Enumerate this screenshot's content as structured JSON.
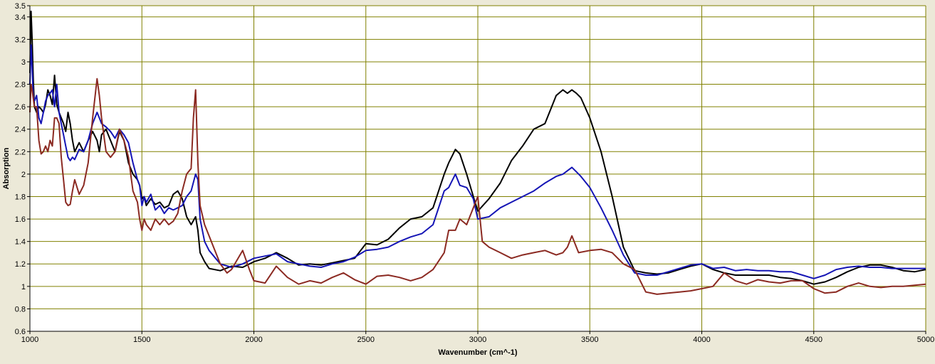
{
  "chart_data": {
    "type": "line",
    "title": "",
    "xlabel": "Wavenumber (cm^-1)",
    "ylabel": "Absorption",
    "xlim": [
      1000,
      5000
    ],
    "ylim": [
      0.6,
      3.5
    ],
    "grid": true,
    "legend": "none",
    "x_ticks": [
      {
        "value": 1000,
        "label": "1000"
      },
      {
        "value": 1500,
        "label": "1500"
      },
      {
        "value": 2000,
        "label": "2000"
      },
      {
        "value": 2500,
        "label": "2500"
      },
      {
        "value": 3000,
        "label": "3000"
      },
      {
        "value": 3500,
        "label": "3500"
      },
      {
        "value": 4000,
        "label": "4000"
      },
      {
        "value": 4500,
        "label": "4500"
      },
      {
        "value": 5000,
        "label": "5000"
      }
    ],
    "y_ticks": [
      {
        "value": 0.6,
        "label": "0.6"
      },
      {
        "value": 0.8,
        "label": "0.8"
      },
      {
        "value": 1.0,
        "label": "1"
      },
      {
        "value": 1.2,
        "label": "1.2"
      },
      {
        "value": 1.4,
        "label": "1.4"
      },
      {
        "value": 1.6,
        "label": "1.6"
      },
      {
        "value": 1.8,
        "label": "1.8"
      },
      {
        "value": 2.0,
        "label": "2"
      },
      {
        "value": 2.2,
        "label": "2.2"
      },
      {
        "value": 2.4,
        "label": "2.4"
      },
      {
        "value": 2.6,
        "label": "2.6"
      },
      {
        "value": 2.8,
        "label": "2.8"
      },
      {
        "value": 3.0,
        "label": "3"
      },
      {
        "value": 3.2,
        "label": "3.2"
      },
      {
        "value": 3.4,
        "label": "3.4"
      },
      {
        "value": 3.5,
        "label": "3.5"
      }
    ],
    "colors": {
      "background": "#ece9d8",
      "plot_area": "#ffffff",
      "grid": "#808000",
      "axis": "#000000"
    },
    "series": [
      {
        "color": "#000000",
        "x": [
          1000,
          1005,
          1010,
          1015,
          1020,
          1030,
          1040,
          1050,
          1060,
          1070,
          1080,
          1090,
          1100,
          1110,
          1120,
          1130,
          1140,
          1150,
          1160,
          1170,
          1180,
          1190,
          1200,
          1220,
          1240,
          1260,
          1280,
          1300,
          1310,
          1320,
          1340,
          1360,
          1380,
          1400,
          1420,
          1440,
          1460,
          1480,
          1490,
          1500,
          1510,
          1520,
          1540,
          1560,
          1580,
          1600,
          1620,
          1640,
          1660,
          1680,
          1700,
          1720,
          1740,
          1750,
          1760,
          1780,
          1800,
          1850,
          1900,
          1950,
          2000,
          2050,
          2100,
          2150,
          2200,
          2250,
          2300,
          2350,
          2400,
          2450,
          2500,
          2550,
          2600,
          2650,
          2700,
          2750,
          2800,
          2850,
          2870,
          2900,
          2920,
          2950,
          2980,
          3000,
          3050,
          3100,
          3150,
          3200,
          3250,
          3300,
          3350,
          3380,
          3400,
          3420,
          3440,
          3460,
          3500,
          3550,
          3600,
          3650,
          3700,
          3750,
          3800,
          3850,
          3900,
          3950,
          4000,
          4050,
          4100,
          4150,
          4200,
          4250,
          4300,
          4350,
          4400,
          4450,
          4500,
          4550,
          4600,
          4650,
          4700,
          4750,
          4800,
          4850,
          4900,
          4950,
          5000
        ],
        "values": [
          2.9,
          3.45,
          3.2,
          2.85,
          2.6,
          2.55,
          2.6,
          2.58,
          2.55,
          2.62,
          2.75,
          2.7,
          2.62,
          2.88,
          2.62,
          2.55,
          2.5,
          2.45,
          2.38,
          2.55,
          2.45,
          2.3,
          2.2,
          2.28,
          2.2,
          2.3,
          2.38,
          2.3,
          2.2,
          2.35,
          2.4,
          2.3,
          2.2,
          2.38,
          2.3,
          2.1,
          2.0,
          1.95,
          1.9,
          1.78,
          1.8,
          1.72,
          1.78,
          1.73,
          1.75,
          1.7,
          1.72,
          1.82,
          1.85,
          1.78,
          1.62,
          1.55,
          1.62,
          1.5,
          1.3,
          1.22,
          1.16,
          1.14,
          1.18,
          1.17,
          1.22,
          1.25,
          1.3,
          1.25,
          1.19,
          1.2,
          1.19,
          1.21,
          1.23,
          1.25,
          1.38,
          1.37,
          1.42,
          1.52,
          1.6,
          1.62,
          1.7,
          2.0,
          2.1,
          2.22,
          2.18,
          2.0,
          1.8,
          1.67,
          1.78,
          1.92,
          2.12,
          2.25,
          2.4,
          2.45,
          2.7,
          2.75,
          2.72,
          2.75,
          2.72,
          2.68,
          2.5,
          2.2,
          1.8,
          1.35,
          1.14,
          1.12,
          1.11,
          1.12,
          1.15,
          1.18,
          1.2,
          1.15,
          1.12,
          1.1,
          1.1,
          1.1,
          1.1,
          1.08,
          1.07,
          1.05,
          1.02,
          1.04,
          1.08,
          1.13,
          1.17,
          1.19,
          1.19,
          1.17,
          1.14,
          1.13,
          1.15
        ]
      },
      {
        "color": "#1515b5",
        "x": [
          1000,
          1005,
          1010,
          1015,
          1020,
          1030,
          1040,
          1050,
          1060,
          1070,
          1080,
          1090,
          1100,
          1110,
          1120,
          1130,
          1140,
          1150,
          1160,
          1170,
          1180,
          1190,
          1200,
          1220,
          1240,
          1260,
          1280,
          1300,
          1310,
          1320,
          1340,
          1360,
          1380,
          1400,
          1420,
          1440,
          1460,
          1480,
          1490,
          1500,
          1510,
          1520,
          1540,
          1560,
          1580,
          1600,
          1620,
          1640,
          1660,
          1680,
          1700,
          1720,
          1740,
          1750,
          1760,
          1780,
          1800,
          1850,
          1900,
          1950,
          2000,
          2050,
          2100,
          2150,
          2200,
          2250,
          2300,
          2350,
          2400,
          2450,
          2500,
          2550,
          2600,
          2650,
          2700,
          2750,
          2800,
          2850,
          2870,
          2900,
          2920,
          2950,
          2980,
          3000,
          3050,
          3100,
          3150,
          3200,
          3250,
          3300,
          3350,
          3380,
          3400,
          3420,
          3440,
          3460,
          3500,
          3550,
          3600,
          3650,
          3700,
          3750,
          3800,
          3850,
          3900,
          3950,
          4000,
          4050,
          4100,
          4150,
          4200,
          4250,
          4300,
          4350,
          4400,
          4450,
          4500,
          4550,
          4600,
          4650,
          4700,
          4750,
          4800,
          4850,
          4900,
          4950,
          5000
        ],
        "values": [
          2.8,
          3.15,
          2.95,
          2.7,
          2.65,
          2.7,
          2.5,
          2.45,
          2.55,
          2.65,
          2.7,
          2.72,
          2.75,
          2.6,
          2.8,
          2.55,
          2.45,
          2.35,
          2.25,
          2.15,
          2.12,
          2.15,
          2.13,
          2.22,
          2.2,
          2.3,
          2.45,
          2.55,
          2.5,
          2.45,
          2.42,
          2.38,
          2.32,
          2.4,
          2.35,
          2.28,
          2.1,
          1.95,
          1.9,
          1.72,
          1.8,
          1.75,
          1.82,
          1.68,
          1.72,
          1.65,
          1.7,
          1.68,
          1.7,
          1.72,
          1.8,
          1.85,
          2.0,
          1.95,
          1.6,
          1.4,
          1.32,
          1.2,
          1.17,
          1.2,
          1.25,
          1.27,
          1.29,
          1.22,
          1.2,
          1.18,
          1.17,
          1.2,
          1.22,
          1.26,
          1.32,
          1.33,
          1.35,
          1.4,
          1.44,
          1.47,
          1.55,
          1.85,
          1.88,
          2.0,
          1.9,
          1.88,
          1.78,
          1.6,
          1.62,
          1.7,
          1.75,
          1.8,
          1.85,
          1.92,
          1.98,
          2.0,
          2.03,
          2.06,
          2.02,
          1.98,
          1.88,
          1.7,
          1.5,
          1.28,
          1.12,
          1.1,
          1.1,
          1.13,
          1.16,
          1.19,
          1.2,
          1.16,
          1.17,
          1.14,
          1.15,
          1.14,
          1.14,
          1.13,
          1.13,
          1.1,
          1.07,
          1.1,
          1.15,
          1.17,
          1.18,
          1.17,
          1.17,
          1.16,
          1.16,
          1.16,
          1.16
        ]
      },
      {
        "color": "#8b2a22",
        "x": [
          1000,
          1005,
          1010,
          1020,
          1030,
          1040,
          1050,
          1060,
          1070,
          1080,
          1090,
          1100,
          1110,
          1120,
          1130,
          1140,
          1150,
          1160,
          1170,
          1180,
          1190,
          1200,
          1220,
          1240,
          1260,
          1280,
          1300,
          1310,
          1320,
          1340,
          1360,
          1380,
          1400,
          1420,
          1440,
          1460,
          1480,
          1490,
          1500,
          1510,
          1520,
          1540,
          1560,
          1580,
          1600,
          1620,
          1640,
          1660,
          1680,
          1700,
          1720,
          1730,
          1740,
          1750,
          1760,
          1780,
          1800,
          1820,
          1850,
          1880,
          1900,
          1950,
          1980,
          2000,
          2050,
          2100,
          2150,
          2200,
          2250,
          2300,
          2350,
          2400,
          2450,
          2500,
          2550,
          2600,
          2650,
          2700,
          2750,
          2800,
          2850,
          2870,
          2900,
          2920,
          2950,
          2980,
          3000,
          3020,
          3050,
          3100,
          3150,
          3200,
          3250,
          3300,
          3350,
          3380,
          3400,
          3420,
          3450,
          3500,
          3550,
          3600,
          3650,
          3700,
          3750,
          3800,
          3850,
          3900,
          3950,
          4000,
          4050,
          4100,
          4150,
          4200,
          4250,
          4300,
          4350,
          4400,
          4450,
          4500,
          4550,
          4600,
          4650,
          4700,
          4750,
          4800,
          4850,
          4900,
          4950,
          5000
        ],
        "values": [
          2.55,
          2.8,
          2.75,
          2.6,
          2.6,
          2.3,
          2.18,
          2.2,
          2.25,
          2.2,
          2.3,
          2.25,
          2.5,
          2.5,
          2.45,
          2.15,
          1.95,
          1.75,
          1.72,
          1.73,
          1.85,
          1.95,
          1.82,
          1.9,
          2.1,
          2.5,
          2.85,
          2.7,
          2.5,
          2.2,
          2.15,
          2.2,
          2.4,
          2.3,
          2.15,
          1.85,
          1.75,
          1.6,
          1.5,
          1.6,
          1.55,
          1.5,
          1.6,
          1.55,
          1.6,
          1.55,
          1.58,
          1.65,
          1.85,
          2.0,
          2.05,
          2.5,
          2.75,
          2.1,
          1.72,
          1.55,
          1.45,
          1.35,
          1.2,
          1.12,
          1.15,
          1.32,
          1.15,
          1.05,
          1.03,
          1.18,
          1.08,
          1.02,
          1.05,
          1.03,
          1.08,
          1.12,
          1.06,
          1.02,
          1.09,
          1.1,
          1.08,
          1.05,
          1.08,
          1.15,
          1.3,
          1.5,
          1.5,
          1.6,
          1.55,
          1.7,
          1.8,
          1.4,
          1.35,
          1.3,
          1.25,
          1.28,
          1.3,
          1.32,
          1.28,
          1.3,
          1.35,
          1.45,
          1.3,
          1.32,
          1.33,
          1.3,
          1.2,
          1.15,
          0.95,
          0.93,
          0.94,
          0.95,
          0.96,
          0.98,
          1.0,
          1.12,
          1.05,
          1.02,
          1.06,
          1.04,
          1.03,
          1.05,
          1.05,
          0.98,
          0.94,
          0.95,
          1.0,
          1.03,
          1.0,
          0.99,
          1.0,
          1.0,
          1.01,
          1.02
        ]
      }
    ]
  }
}
